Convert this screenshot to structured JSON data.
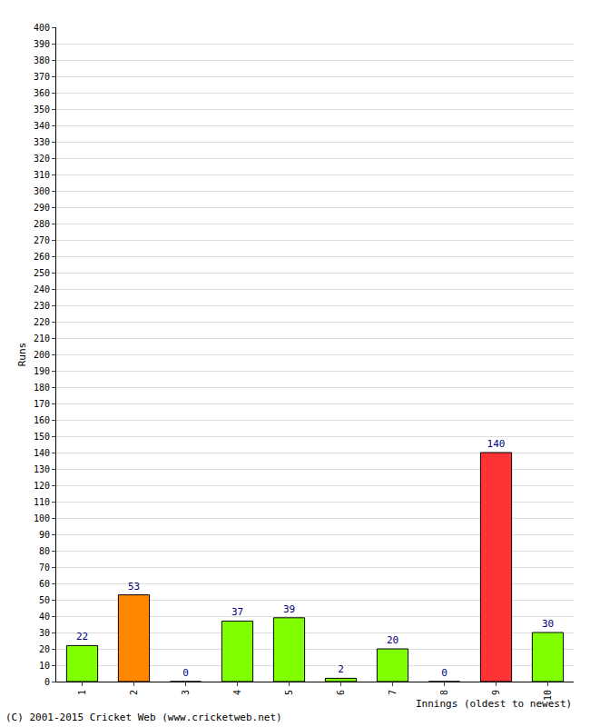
{
  "chart_data": {
    "type": "bar",
    "xlabel": "Innings (oldest to newest)",
    "ylabel": "Runs",
    "annotation": "(C) 2001-2015 Cricket Web (www.cricketweb.net)",
    "categories": [
      "1",
      "2",
      "3",
      "4",
      "5",
      "6",
      "7",
      "8",
      "9",
      "10"
    ],
    "values": [
      22,
      53,
      0,
      37,
      39,
      2,
      20,
      0,
      140,
      30
    ],
    "colors": [
      "#80ff00",
      "#ff8800",
      "#80ff00",
      "#80ff00",
      "#80ff00",
      "#80ff00",
      "#80ff00",
      "#80ff00",
      "#ff3333",
      "#80ff00"
    ],
    "ylim": [
      0,
      400
    ],
    "yticks": [
      0,
      10,
      20,
      30,
      40,
      50,
      60,
      70,
      80,
      90,
      100,
      110,
      120,
      130,
      140,
      150,
      160,
      170,
      180,
      190,
      200,
      210,
      220,
      230,
      240,
      250,
      260,
      270,
      280,
      290,
      300,
      310,
      320,
      330,
      340,
      350,
      360,
      370,
      380,
      390,
      400
    ],
    "grid": true,
    "data_labels": true
  }
}
